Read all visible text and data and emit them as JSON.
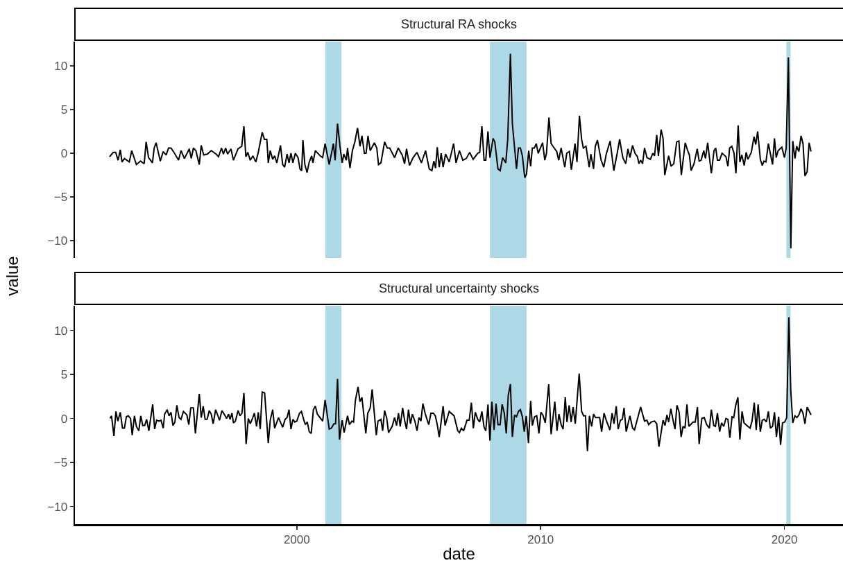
{
  "chart_data": [
    {
      "type": "line",
      "title": "Structural RA shocks",
      "ylabel": "value",
      "xlim": [
        1990.9,
        2022.4
      ],
      "xticks": [
        2000,
        2010,
        2020
      ],
      "ylim": [
        -12,
        12.8
      ],
      "yticks": [
        -10,
        -5,
        0,
        5,
        10
      ],
      "tick_labels": "y",
      "bands": [
        {
          "axis": "x",
          "from": 2001.17,
          "to": 2001.83,
          "color": "#add8e6"
        },
        {
          "axis": "x",
          "from": 2007.92,
          "to": 2009.42,
          "color": "#add8e6"
        },
        {
          "axis": "x",
          "from": 2020.08,
          "to": 2020.25,
          "color": "#add8e6"
        }
      ],
      "series": [
        {
          "color": "#000000",
          "x": [
            1992.32,
            1992.47,
            1992.57,
            1992.67,
            1992.76,
            1992.83,
            1992.93,
            1993.13,
            1993.23,
            1993.42,
            1993.59,
            1993.74,
            1993.82,
            1993.92,
            1994.08,
            1994.15,
            1994.23,
            1994.4,
            1994.52,
            1994.64,
            1994.74,
            1994.84,
            1994.96,
            1995.15,
            1995.25,
            1995.39,
            1995.59,
            1995.67,
            1995.76,
            1995.86,
            1996.0,
            1996.08,
            1996.18,
            1996.33,
            1996.49,
            1996.69,
            1996.79,
            1996.91,
            1996.99,
            1997.08,
            1997.16,
            1997.3,
            1997.4,
            1997.59,
            1997.74,
            1997.83,
            1997.91,
            1997.99,
            1998.09,
            1998.2,
            1998.32,
            1998.42,
            1998.58,
            1998.67,
            1998.77,
            1998.83,
            1998.91,
            1999.01,
            1999.09,
            1999.18,
            1999.33,
            1999.42,
            1999.5,
            1999.6,
            1999.68,
            1999.76,
            1999.84,
            1999.94,
            2000.05,
            2000.13,
            2000.2,
            2000.25,
            2000.33,
            2000.42,
            2000.51,
            2000.61,
            2000.66,
            2000.76,
            2000.96,
            2001.06,
            2001.16,
            2001.33,
            2001.5,
            2001.57,
            2001.67,
            2001.77,
            2001.86,
            2001.93,
            2002.03,
            2002.08,
            2002.18,
            2002.28,
            2002.38,
            2002.49,
            2002.59,
            2002.67,
            2002.77,
            2002.84,
            2002.92,
            2003.01,
            2003.18,
            2003.28,
            2003.35,
            2003.45,
            2003.6,
            2003.71,
            2003.81,
            2004.01,
            2004.16,
            2004.32,
            2004.42,
            2004.5,
            2004.62,
            2004.77,
            2004.93,
            2005.11,
            2005.28,
            2005.43,
            2005.54,
            2005.62,
            2005.69,
            2005.76,
            2005.84,
            2005.92,
            2006.0,
            2006.1,
            2006.25,
            2006.43,
            2006.53,
            2006.67,
            2006.81,
            2006.95,
            2007.09,
            2007.23,
            2007.42,
            2007.5,
            2007.59,
            2007.68,
            2007.75,
            2007.84,
            2007.92,
            2008.05,
            2008.12,
            2008.25,
            2008.34,
            2008.44,
            2008.57,
            2008.65,
            2008.76,
            2008.84,
            2009.01,
            2009.09,
            2009.17,
            2009.25,
            2009.35,
            2009.42,
            2009.51,
            2009.59,
            2009.66,
            2009.74,
            2009.82,
            2009.9,
            2010.08,
            2010.17,
            2010.24,
            2010.34,
            2010.43,
            2010.53,
            2010.66,
            2010.74,
            2010.84,
            2010.99,
            2011.07,
            2011.18,
            2011.26,
            2011.41,
            2011.49,
            2011.59,
            2011.68,
            2011.75,
            2011.86,
            2011.99,
            2012.06,
            2012.17,
            2012.24,
            2012.33,
            2012.48,
            2012.59,
            2012.69,
            2012.85,
            2013.0,
            2013.14,
            2013.24,
            2013.37,
            2013.49,
            2013.58,
            2013.66,
            2013.77,
            2013.87,
            2013.97,
            2014.03,
            2014.1,
            2014.18,
            2014.26,
            2014.36,
            2014.5,
            2014.6,
            2014.67,
            2014.76,
            2014.83,
            2014.94,
            2015.02,
            2015.09,
            2015.25,
            2015.35,
            2015.46,
            2015.58,
            2015.67,
            2015.77,
            2015.93,
            2016.03,
            2016.1,
            2016.17,
            2016.29,
            2016.42,
            2016.5,
            2016.58,
            2016.69,
            2016.76,
            2016.85,
            2017.0,
            2017.11,
            2017.18,
            2017.25,
            2017.34,
            2017.44,
            2017.6,
            2017.68,
            2017.75,
            2017.84,
            2017.93,
            2018.01,
            2018.1,
            2018.17,
            2018.25,
            2018.35,
            2018.43,
            2018.5,
            2018.64,
            2018.75,
            2018.82,
            2018.9,
            2019.01,
            2019.09,
            2019.16,
            2019.24,
            2019.34,
            2019.51,
            2019.59,
            2019.66,
            2019.74,
            2019.89,
            2020.0,
            2020.07,
            2020.16,
            2020.26,
            2020.34,
            2020.43,
            2020.5,
            2020.59,
            2020.68,
            2020.76,
            2020.84,
            2020.93,
            2021.01,
            2021.09
          ],
          "values": [
            -0.4,
            0.1,
            0.1,
            -0.8,
            0.4,
            -1.0,
            -0.6,
            -1.0,
            0.3,
            -1.3,
            -0.9,
            -1.2,
            1.3,
            -0.5,
            -1.1,
            0.6,
            1.2,
            -0.9,
            0.2,
            -0.2,
            0.6,
            0.6,
            0.1,
            -0.8,
            0.3,
            -0.6,
            0.5,
            -0.6,
            0.6,
            0.3,
            -1.3,
            0.9,
            -0.2,
            -0.1,
            0.3,
            -0.1,
            -0.4,
            0.6,
            -0.1,
            0.6,
            -0.1,
            0.5,
            -0.8,
            0.5,
            0.8,
            3.1,
            -0.4,
            0.1,
            -0.8,
            -0.3,
            -1.0,
            0.1,
            2.4,
            1.6,
            1.6,
            -1.1,
            0.3,
            -0.7,
            -0.3,
            -1.1,
            0.9,
            -1.3,
            -1.6,
            -0.1,
            -1.1,
            0.0,
            -1.1,
            0.0,
            -0.5,
            -1.8,
            -2.0,
            1.5,
            -1.3,
            -2.2,
            -1.0,
            -0.3,
            -1.1,
            0.3,
            -0.3,
            -0.5,
            1.1,
            -1.3,
            1.1,
            -0.8,
            3.4,
            0.8,
            -1.1,
            -0.1,
            -0.8,
            0.6,
            -1.7,
            0.3,
            1.3,
            2.9,
            0.8,
            2.0,
            0.0,
            0.0,
            2.0,
            0.3,
            1.2,
            0.6,
            -1.3,
            -1.1,
            1.3,
            0.6,
            0.6,
            -0.5,
            0.6,
            -0.2,
            -1.2,
            0.5,
            -1.4,
            -0.5,
            0.1,
            -1.1,
            0.3,
            -1.8,
            -2.0,
            -0.9,
            -1.7,
            0.7,
            -1.6,
            0.0,
            -1.6,
            -0.1,
            -1.0,
            1.1,
            -1.1,
            0.3,
            -0.8,
            -0.6,
            0.1,
            -0.7,
            0.0,
            0.1,
            3.1,
            -0.8,
            -0.8,
            2.5,
            -0.5,
            1.7,
            1.3,
            -1.8,
            -2.0,
            -0.5,
            -1.1,
            1.6,
            11.4,
            3.4,
            -1.8,
            0.6,
            0.6,
            -0.3,
            -2.8,
            -2.4,
            0.3,
            -1.5,
            0.6,
            0.6,
            1.1,
            0.0,
            1.2,
            -0.8,
            0.0,
            4.1,
            1.1,
            0.7,
            0.2,
            -0.8,
            0.6,
            -1.6,
            0.0,
            0.2,
            -1.9,
            1.1,
            -1.0,
            4.3,
            1.6,
            0.6,
            0.8,
            -1.6,
            -0.1,
            -1.8,
            0.8,
            1.5,
            -0.8,
            -1.6,
            -0.1,
            1.4,
            -2.0,
            0.0,
            1.6,
            -0.5,
            -1.2,
            0.5,
            -0.5,
            0.9,
            0.0,
            -0.4,
            -1.2,
            -0.8,
            -1.2,
            0.6,
            -0.5,
            -0.7,
            0.0,
            -0.3,
            2.1,
            -0.3,
            2.7,
            1.7,
            -2.5,
            -0.3,
            -1.5,
            -1.2,
            1.3,
            1.4,
            -2.5,
            1.2,
            0.3,
            -0.2,
            -2.0,
            -1.2,
            0.5,
            -0.9,
            -0.8,
            0.3,
            -0.6,
            1.2,
            -2.3,
            0.3,
            0.6,
            -0.8,
            -0.8,
            0.0,
            -0.4,
            -1.5,
            0.6,
            0.8,
            0.0,
            -2.3,
            3.2,
            -1.0,
            -0.2,
            -1.4,
            0.1,
            -0.7,
            0.1,
            1.9,
            1.0,
            2.5,
            -0.7,
            -1.4,
            -0.9,
            -1.0,
            1.1,
            -1.3,
            1.7,
            -0.5,
            0.3,
            0.7,
            -0.5,
            0.6,
            11.0,
            -10.9,
            1.4,
            -0.6,
            0.8,
            0.2,
            2.0,
            1.1,
            -2.6,
            -2.1,
            1.2,
            0.2
          ]
        }
      ]
    },
    {
      "type": "line",
      "title": "Structural uncertainty shocks",
      "xlabel": "date",
      "xlim": [
        1990.9,
        2022.4
      ],
      "xticks": [
        2000,
        2010,
        2020
      ],
      "ylim": [
        -12,
        12.8
      ],
      "yticks": [
        -10,
        -5,
        0,
        5,
        10
      ],
      "bands": [
        {
          "axis": "x",
          "from": 2001.17,
          "to": 2001.83,
          "color": "#add8e6"
        },
        {
          "axis": "x",
          "from": 2007.92,
          "to": 2009.42,
          "color": "#add8e6"
        },
        {
          "axis": "x",
          "from": 2020.08,
          "to": 2020.25,
          "color": "#add8e6"
        }
      ],
      "series": [
        {
          "color": "#000000",
          "x": [
            1992.34,
            1992.4,
            1992.5,
            1992.58,
            1992.66,
            1992.76,
            1992.85,
            1992.93,
            1993.01,
            1993.09,
            1993.18,
            1993.25,
            1993.34,
            1993.42,
            1993.52,
            1993.6,
            1993.68,
            1993.76,
            1993.84,
            1993.93,
            1994.09,
            1994.17,
            1994.25,
            1994.35,
            1994.43,
            1994.52,
            1994.58,
            1994.68,
            1994.76,
            1994.84,
            1994.92,
            1995.0,
            1995.08,
            1995.17,
            1995.25,
            1995.35,
            1995.49,
            1995.57,
            1995.65,
            1995.76,
            1995.84,
            1996.0,
            1996.08,
            1996.16,
            1996.24,
            1996.32,
            1996.41,
            1996.49,
            1996.57,
            1996.67,
            1996.75,
            1996.83,
            1996.93,
            1997.04,
            1997.12,
            1997.2,
            1997.26,
            1997.34,
            1997.4,
            1997.48,
            1997.59,
            1997.67,
            1997.75,
            1997.83,
            1997.92,
            1998.01,
            1998.09,
            1998.18,
            1998.26,
            1998.35,
            1998.42,
            1998.5,
            1998.58,
            1998.68,
            1998.83,
            1998.91,
            1999.01,
            1999.09,
            1999.25,
            1999.42,
            1999.52,
            1999.6,
            1999.68,
            1999.76,
            1999.84,
            1999.92,
            2000.0,
            2000.11,
            2000.19,
            2000.29,
            2000.35,
            2000.43,
            2000.51,
            2000.59,
            2000.68,
            2000.76,
            2000.84,
            2001.06,
            2001.16,
            2001.33,
            2001.42,
            2001.52,
            2001.59,
            2001.67,
            2001.75,
            2001.86,
            2001.94,
            2002.08,
            2002.16,
            2002.26,
            2002.33,
            2002.4,
            2002.51,
            2002.59,
            2002.67,
            2002.83,
            2002.91,
            2003.01,
            2003.09,
            2003.26,
            2003.33,
            2003.45,
            2003.52,
            2003.6,
            2003.69,
            2003.76,
            2003.91,
            2004.01,
            2004.09,
            2004.17,
            2004.24,
            2004.34,
            2004.42,
            2004.5,
            2004.58,
            2004.66,
            2004.74,
            2004.84,
            2004.93,
            2005.01,
            2005.09,
            2005.17,
            2005.27,
            2005.41,
            2005.5,
            2005.6,
            2005.68,
            2005.76,
            2005.84,
            2006.0,
            2006.08,
            2006.25,
            2006.45,
            2006.6,
            2006.67,
            2006.75,
            2006.84,
            2006.98,
            2007.07,
            2007.16,
            2007.24,
            2007.32,
            2007.42,
            2007.5,
            2007.59,
            2007.68,
            2007.75,
            2007.84,
            2007.92,
            2008.0,
            2008.09,
            2008.17,
            2008.25,
            2008.34,
            2008.42,
            2008.51,
            2008.59,
            2008.67,
            2008.76,
            2008.84,
            2008.93,
            2009.01,
            2009.09,
            2009.17,
            2009.25,
            2009.33,
            2009.41,
            2009.5,
            2009.59,
            2009.66,
            2009.75,
            2009.84,
            2009.93,
            2010.01,
            2010.09,
            2010.19,
            2010.33,
            2010.43,
            2010.58,
            2010.67,
            2010.75,
            2010.84,
            2010.92,
            2011.01,
            2011.08,
            2011.17,
            2011.25,
            2011.33,
            2011.42,
            2011.58,
            2011.68,
            2011.76,
            2011.84,
            2011.92,
            2012.0,
            2012.09,
            2012.17,
            2012.25,
            2012.42,
            2012.5,
            2012.6,
            2012.69,
            2012.84,
            2012.93,
            2013.01,
            2013.1,
            2013.18,
            2013.27,
            2013.35,
            2013.42,
            2013.51,
            2013.66,
            2013.77,
            2013.85,
            2014.1,
            2014.26,
            2014.36,
            2014.43,
            2014.54,
            2014.67,
            2014.76,
            2014.85,
            2015.02,
            2015.1,
            2015.18,
            2015.25,
            2015.34,
            2015.43,
            2015.51,
            2015.59,
            2015.68,
            2015.76,
            2015.84,
            2015.92,
            2016.0,
            2016.08,
            2016.25,
            2016.34,
            2016.43,
            2016.5,
            2016.61,
            2016.71,
            2016.81,
            2016.92,
            2017.0,
            2017.1,
            2017.17,
            2017.25,
            2017.34,
            2017.42,
            2017.51,
            2017.6,
            2017.68,
            2017.76,
            2017.85,
            2017.92,
            2018.0,
            2018.09,
            2018.17,
            2018.26,
            2018.34,
            2018.5,
            2018.59,
            2018.67,
            2018.76,
            2018.84,
            2018.92,
            2019.01,
            2019.09,
            2019.17,
            2019.26,
            2019.34,
            2019.42,
            2019.51,
            2019.59,
            2019.67,
            2019.76,
            2019.84,
            2019.92,
            2020.01,
            2020.09,
            2020.18,
            2020.26,
            2020.34,
            2020.43,
            2020.51,
            2020.59,
            2020.68,
            2020.76,
            2020.84,
            2020.93,
            2021.09
          ],
          "values": [
            0.0,
            0.3,
            -2.0,
            0.8,
            -0.3,
            0.7,
            -1.1,
            -1.1,
            0.2,
            0.3,
            0.0,
            -1.9,
            0.3,
            -0.9,
            -1.4,
            0.3,
            -0.8,
            -0.8,
            -0.1,
            -1.4,
            1.6,
            -1.2,
            -0.2,
            -0.3,
            -0.2,
            -1.1,
            0.5,
            1.0,
            0.3,
            0.7,
            -0.8,
            -0.4,
            1.5,
            0.1,
            -0.1,
            0.8,
            0.4,
            -0.7,
            1.2,
            1.2,
            -1.7,
            2.8,
            0.1,
            1.4,
            -0.1,
            -0.1,
            0.9,
            0.5,
            -0.6,
            1.0,
            0.4,
            -0.2,
            0.9,
            0.4,
            0.0,
            0.5,
            -0.1,
            0.6,
            -0.5,
            -0.3,
            0.9,
            0.3,
            0.6,
            2.9,
            -2.9,
            0.0,
            -0.6,
            0.0,
            0.6,
            -0.9,
            0.7,
            -1.2,
            3.0,
            2.9,
            -2.8,
            -0.2,
            1.0,
            -1.1,
            0.1,
            -1.0,
            -0.1,
            0.1,
            1.0,
            -1.2,
            -0.1,
            -0.4,
            -0.3,
            0.6,
            0.8,
            -0.2,
            -0.7,
            -0.4,
            -1.5,
            -1.7,
            1.0,
            1.4,
            0.5,
            -0.3,
            2.1,
            -1.2,
            -1.1,
            -0.6,
            -0.6,
            4.5,
            -2.4,
            -0.2,
            -1.6,
            0.3,
            -0.7,
            -0.3,
            -0.4,
            2.0,
            3.6,
            1.9,
            2.4,
            -1.7,
            0.6,
            1.2,
            3.3,
            -1.9,
            -0.3,
            -0.1,
            -1.4,
            0.9,
            0.0,
            -1.6,
            -0.9,
            0.1,
            -0.8,
            0.6,
            -0.9,
            1.2,
            -0.2,
            -1.2,
            1.0,
            -0.6,
            0.5,
            -0.3,
            -1.4,
            0.1,
            -0.3,
            1.7,
            0.5,
            -0.7,
            0.6,
            0.6,
            0.3,
            -0.7,
            -2.1,
            1.4,
            -0.8,
            0.8,
            0.3,
            -1.4,
            -1.6,
            -1.1,
            -1.4,
            -0.2,
            -0.2,
            1.8,
            -1.1,
            0.7,
            -0.1,
            -0.4,
            0.8,
            -1.0,
            -1.4,
            1.6,
            -2.5,
            1.9,
            -1.3,
            1.7,
            -0.7,
            -0.7,
            1.6,
            0.6,
            -1.7,
            2.6,
            3.9,
            -2.1,
            0.4,
            0.2,
            0.8,
            1.0,
            0.2,
            -1.5,
            0.3,
            -2.8,
            2.0,
            -0.8,
            0.2,
            0.3,
            -1.7,
            0.7,
            0.4,
            -0.5,
            3.9,
            -1.8,
            1.9,
            -1.4,
            0.5,
            -0.7,
            -1.2,
            2.4,
            -0.4,
            1.5,
            -0.4,
            1.3,
            -0.6,
            5.1,
            0.8,
            0.3,
            0.3,
            -3.7,
            0.3,
            -0.9,
            0.5,
            0.1,
            0.1,
            -1.5,
            0.6,
            -0.2,
            -1.3,
            0.6,
            -0.6,
            1.4,
            -1.2,
            -0.2,
            -0.1,
            1.2,
            -1.5,
            0.3,
            -1.1,
            -1.3,
            1.3,
            -0.3,
            -0.2,
            -0.7,
            -0.4,
            -0.3,
            -0.6,
            -3.2,
            -0.2,
            -0.8,
            0.4,
            -0.4,
            1.1,
            -0.2,
            -1.2,
            1.5,
            0.7,
            -2.1,
            -0.9,
            -1.1,
            1.6,
            -0.9,
            -0.4,
            -0.4,
            1.3,
            -2.9,
            0.0,
            0.1,
            -0.7,
            -1.1,
            1.0,
            -0.8,
            -0.9,
            0.6,
            -1.5,
            -0.5,
            -0.9,
            0.0,
            -0.1,
            -2.2,
            0.2,
            0.1,
            1.5,
            2.4,
            -2.4,
            0.8,
            -0.5,
            -0.9,
            -1.1,
            -0.3,
            1.8,
            -1.3,
            1.6,
            -1.5,
            -0.2,
            -0.1,
            -0.4,
            0.8,
            -1.1,
            -0.9,
            0.7,
            -2.1,
            0.2,
            -3.0,
            -0.5,
            -0.4,
            0.1,
            11.5,
            3.1,
            -0.5,
            0.3,
            0.1,
            0.4,
            1.1,
            0.6,
            -0.6,
            1.3,
            0.4
          ]
        }
      ]
    }
  ]
}
